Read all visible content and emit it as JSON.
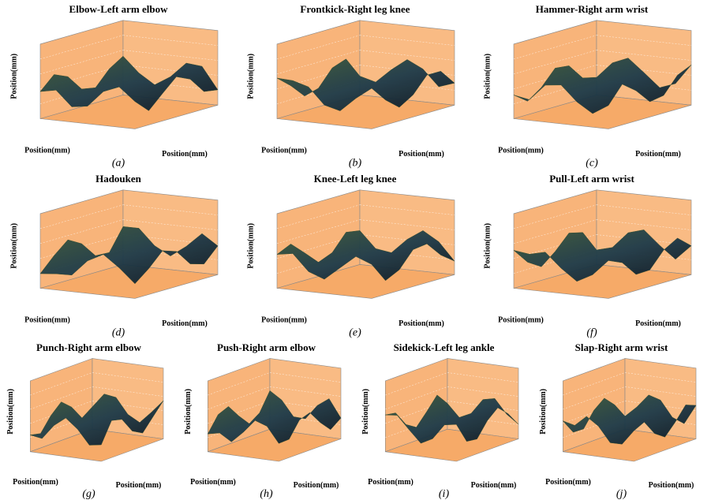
{
  "panels": [
    {
      "title": "Elbow-Left arm elbow",
      "caption": "(a)",
      "x_label": "Position(mm)",
      "y_label": "Position(mm)",
      "z_label": "Position(mm)"
    },
    {
      "title": "Frontkick-Right leg knee",
      "caption": "(b)",
      "x_label": "Position(mm)",
      "y_label": "Position(mm)",
      "z_label": "Position(mm)"
    },
    {
      "title": "Hammer-Right arm wrist",
      "caption": "(c)",
      "x_label": "Position(mm)",
      "y_label": "Position(mm)",
      "z_label": "Position(mm)"
    },
    {
      "title": "Hadouken",
      "caption": "(d)",
      "x_label": "Position(mm)",
      "y_label": "Position(mm)",
      "z_label": "Position(mm)"
    },
    {
      "title": "Knee-Left leg knee",
      "caption": "(e)",
      "x_label": "Position(mm)",
      "y_label": "Position(mm)",
      "z_label": "Position(mm)"
    },
    {
      "title": "Pull-Left arm wrist",
      "caption": "(f)",
      "x_label": "Position(mm)",
      "y_label": "Position(mm)",
      "z_label": "Position(mm)"
    },
    {
      "title": "Punch-Right arm elbow",
      "caption": "(g)",
      "x_label": "Position(mm)",
      "y_label": "Position(mm)",
      "z_label": "Position(mm)"
    },
    {
      "title": "Push-Right arm elbow",
      "caption": "(h)",
      "x_label": "Position(mm)",
      "y_label": "Position(mm)",
      "z_label": "Position(mm)"
    },
    {
      "title": "Sidekick-Left leg ankle",
      "caption": "(i)",
      "x_label": "Position(mm)",
      "y_label": "Position(mm)",
      "z_label": "Position(mm)"
    },
    {
      "title": "Slap-Right arm wrist",
      "caption": "(j)",
      "x_label": "Position(mm)",
      "y_label": "Position(mm)",
      "z_label": "Position(mm)"
    }
  ]
}
